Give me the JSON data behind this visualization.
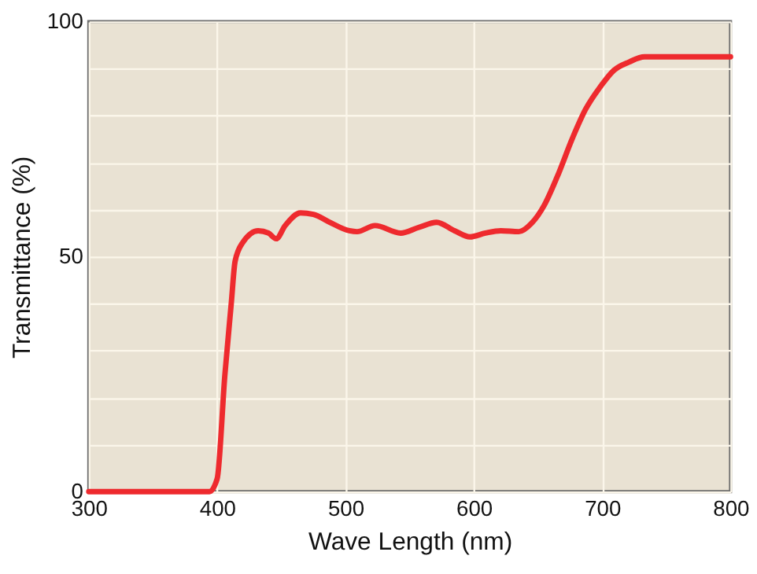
{
  "chart_data": {
    "type": "line",
    "xlabel": "Wave Length (nm)",
    "ylabel": "Transmittance (%)",
    "x": [
      300,
      394,
      400,
      406,
      411,
      414,
      420,
      432,
      440,
      446,
      453,
      465,
      475,
      487,
      503,
      509,
      523,
      543,
      557,
      571,
      585,
      597,
      609,
      621,
      635,
      645,
      655,
      665,
      677,
      687,
      699,
      709,
      721,
      733,
      800
    ],
    "series": [
      {
        "color": "#ee2a2e",
        "values": [
          0,
          0,
          2.7,
          24.7,
          40,
          49,
          53,
          55.5,
          55,
          53.8,
          56.6,
          59.3,
          59,
          57.4,
          55.5,
          55.3,
          56.6,
          55,
          56.2,
          57.3,
          55.5,
          54.2,
          55,
          55.5,
          55.3,
          57.1,
          61,
          67,
          75.3,
          81.3,
          86.3,
          89.6,
          91.4,
          92.5,
          92.5
        ]
      }
    ],
    "xlim": [
      300,
      800
    ],
    "ylim": [
      0,
      100
    ],
    "xticks": [
      300,
      400,
      500,
      600,
      700,
      800
    ],
    "yticks": [
      0,
      {
        "value": 10,
        "label": null
      },
      {
        "value": 20,
        "label": null
      },
      {
        "value": 30,
        "label": null
      },
      {
        "value": 40,
        "label": null
      },
      50,
      {
        "value": 60,
        "label": null
      },
      {
        "value": 70,
        "label": null
      },
      {
        "value": 80,
        "label": null
      },
      {
        "value": 90,
        "label": null
      },
      100
    ],
    "grid": true,
    "marker": "none",
    "line_style": "solid"
  }
}
